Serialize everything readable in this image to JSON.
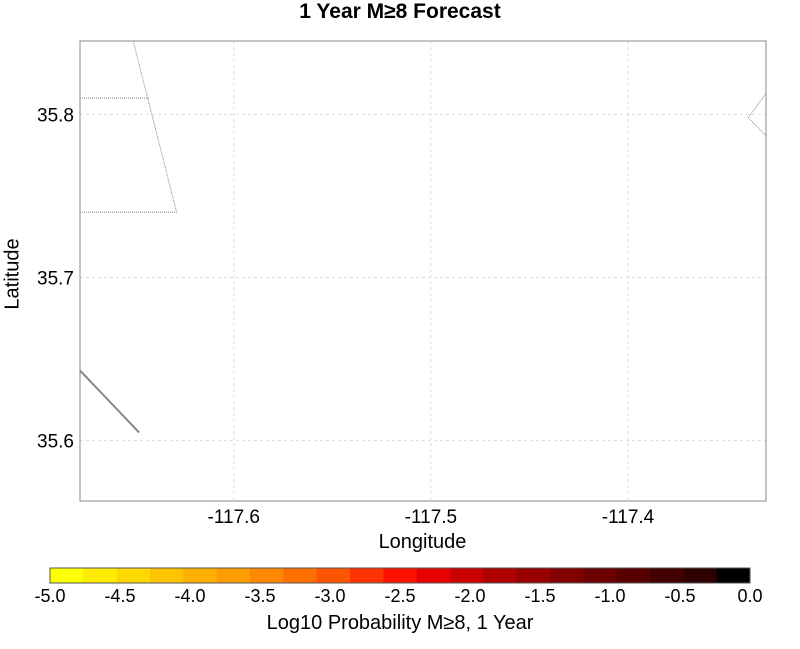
{
  "title": "1 Year M≥8 Forecast",
  "map": {
    "xlabel": "Longitude",
    "ylabel": "Latitude",
    "xlim": [
      -117.678,
      -117.33
    ],
    "ylim": [
      35.563,
      35.845
    ],
    "x_ticks": [
      -117.6,
      -117.5,
      -117.4
    ],
    "x_tick_labels": [
      "-117.6",
      "-117.5",
      "-117.4"
    ],
    "y_ticks": [
      35.6,
      35.7,
      35.8
    ],
    "y_tick_labels": [
      "35.6",
      "35.7",
      "35.8"
    ],
    "grid": "dashed",
    "line_color": "#888888",
    "boundaries": [
      {
        "name": "boundary-upper-left",
        "style": "dotted",
        "points": [
          [
            -117.678,
            35.81
          ],
          [
            -117.643,
            35.81
          ]
        ]
      },
      {
        "name": "boundary-diagonal",
        "style": "dotted",
        "points": [
          [
            -117.651,
            35.845
          ],
          [
            -117.629,
            35.74
          ]
        ]
      },
      {
        "name": "boundary-lower-left",
        "style": "dotted",
        "points": [
          [
            -117.678,
            35.74
          ],
          [
            -117.629,
            35.74
          ]
        ]
      },
      {
        "name": "boundary-right-notch",
        "style": "dotted",
        "points": [
          [
            -117.33,
            35.845
          ],
          [
            -117.33,
            35.813
          ],
          [
            -117.339,
            35.798
          ],
          [
            -117.33,
            35.787
          ]
        ]
      },
      {
        "name": "fault-line",
        "style": "solid",
        "points": [
          [
            -117.678,
            35.643
          ],
          [
            -117.648,
            35.605
          ]
        ]
      }
    ]
  },
  "colorbar": {
    "label": "Log10 Probability M≥8, 1 Year",
    "vmin": -5.0,
    "vmax": 0.0,
    "colors": [
      "#ffff00",
      "#ffec00",
      "#ffd800",
      "#ffc400",
      "#ffb000",
      "#ff9c00",
      "#ff8800",
      "#ff6f00",
      "#ff5500",
      "#ff3300",
      "#ff1100",
      "#e80000",
      "#cc0000",
      "#b00000",
      "#990000",
      "#820000",
      "#6d0000",
      "#580000",
      "#430000",
      "#2e0000",
      "#000000"
    ],
    "ticks": [
      -5.0,
      -4.5,
      -4.0,
      -3.5,
      -3.0,
      -2.5,
      -2.0,
      -1.5,
      -1.0,
      -0.5,
      0.0
    ],
    "tick_labels": [
      "-5.0",
      "-4.5",
      "-4.0",
      "-3.5",
      "-3.0",
      "-2.5",
      "-2.0",
      "-1.5",
      "-1.0",
      "-0.5",
      "0.0"
    ]
  }
}
